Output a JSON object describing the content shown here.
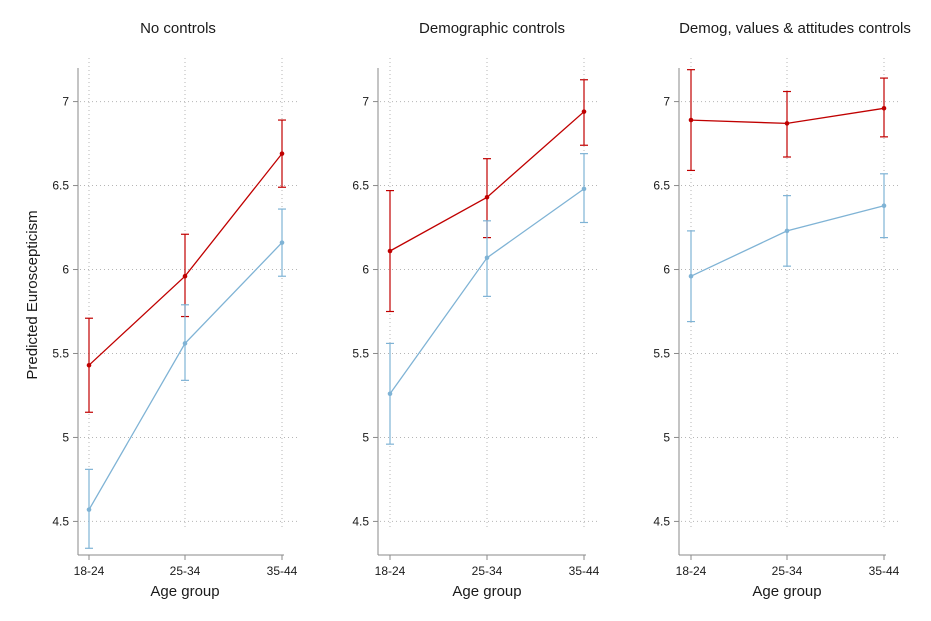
{
  "figure": {
    "ylabel": "Predicted Euroscepticism",
    "series_colors": {
      "red": "#c00000",
      "blue": "#7fb3d5"
    }
  },
  "chart_data": [
    {
      "type": "line",
      "title": "No controls",
      "xlabel": "Age group",
      "ylabel": "Predicted Euroscepticism",
      "categories": [
        "18-24",
        "25-34",
        "35-44"
      ],
      "ylim": [
        4.3,
        7.2
      ],
      "yticks": [
        4.5,
        5,
        5.5,
        6,
        6.5,
        7
      ],
      "ytick_labels": [
        "4.5",
        "5",
        "5.5",
        "6",
        "6.5",
        "7"
      ],
      "grid": true,
      "series": [
        {
          "color": "#c00000",
          "values": [
            5.43,
            5.96,
            6.69
          ],
          "ci_low": [
            5.15,
            5.72,
            6.49
          ],
          "ci_high": [
            5.71,
            6.21,
            6.89
          ]
        },
        {
          "color": "#7fb3d5",
          "values": [
            4.57,
            5.56,
            6.16
          ],
          "ci_low": [
            4.34,
            5.34,
            5.96
          ],
          "ci_high": [
            4.81,
            5.79,
            6.36
          ]
        }
      ]
    },
    {
      "type": "line",
      "title": "Demographic controls",
      "xlabel": "Age group",
      "ylabel": "",
      "categories": [
        "18-24",
        "25-34",
        "35-44"
      ],
      "ylim": [
        4.3,
        7.2
      ],
      "yticks": [
        4.5,
        5,
        5.5,
        6,
        6.5,
        7
      ],
      "ytick_labels": [
        "4.5",
        "5",
        "5.5",
        "6",
        "6.5",
        "7"
      ],
      "grid": true,
      "series": [
        {
          "color": "#c00000",
          "values": [
            6.11,
            6.43,
            6.94
          ],
          "ci_low": [
            5.75,
            6.19,
            6.74
          ],
          "ci_high": [
            6.47,
            6.66,
            7.13
          ]
        },
        {
          "color": "#7fb3d5",
          "values": [
            5.26,
            6.07,
            6.48
          ],
          "ci_low": [
            4.96,
            5.84,
            6.28
          ],
          "ci_high": [
            5.56,
            6.29,
            6.69
          ]
        }
      ]
    },
    {
      "type": "line",
      "title": "Demog, values & attitudes controls",
      "xlabel": "Age group",
      "ylabel": "",
      "categories": [
        "18-24",
        "25-34",
        "35-44"
      ],
      "ylim": [
        4.3,
        7.2
      ],
      "yticks": [
        4.5,
        5,
        5.5,
        6,
        6.5,
        7
      ],
      "ytick_labels": [
        "4.5",
        "5",
        "5.5",
        "6",
        "6.5",
        "7"
      ],
      "grid": true,
      "series": [
        {
          "color": "#c00000",
          "values": [
            6.89,
            6.87,
            6.96
          ],
          "ci_low": [
            6.59,
            6.67,
            6.79
          ],
          "ci_high": [
            7.19,
            7.06,
            7.14
          ]
        },
        {
          "color": "#7fb3d5",
          "values": [
            5.96,
            6.23,
            6.38
          ],
          "ci_low": [
            5.69,
            6.02,
            6.19
          ],
          "ci_high": [
            6.23,
            6.44,
            6.57
          ]
        }
      ]
    }
  ]
}
